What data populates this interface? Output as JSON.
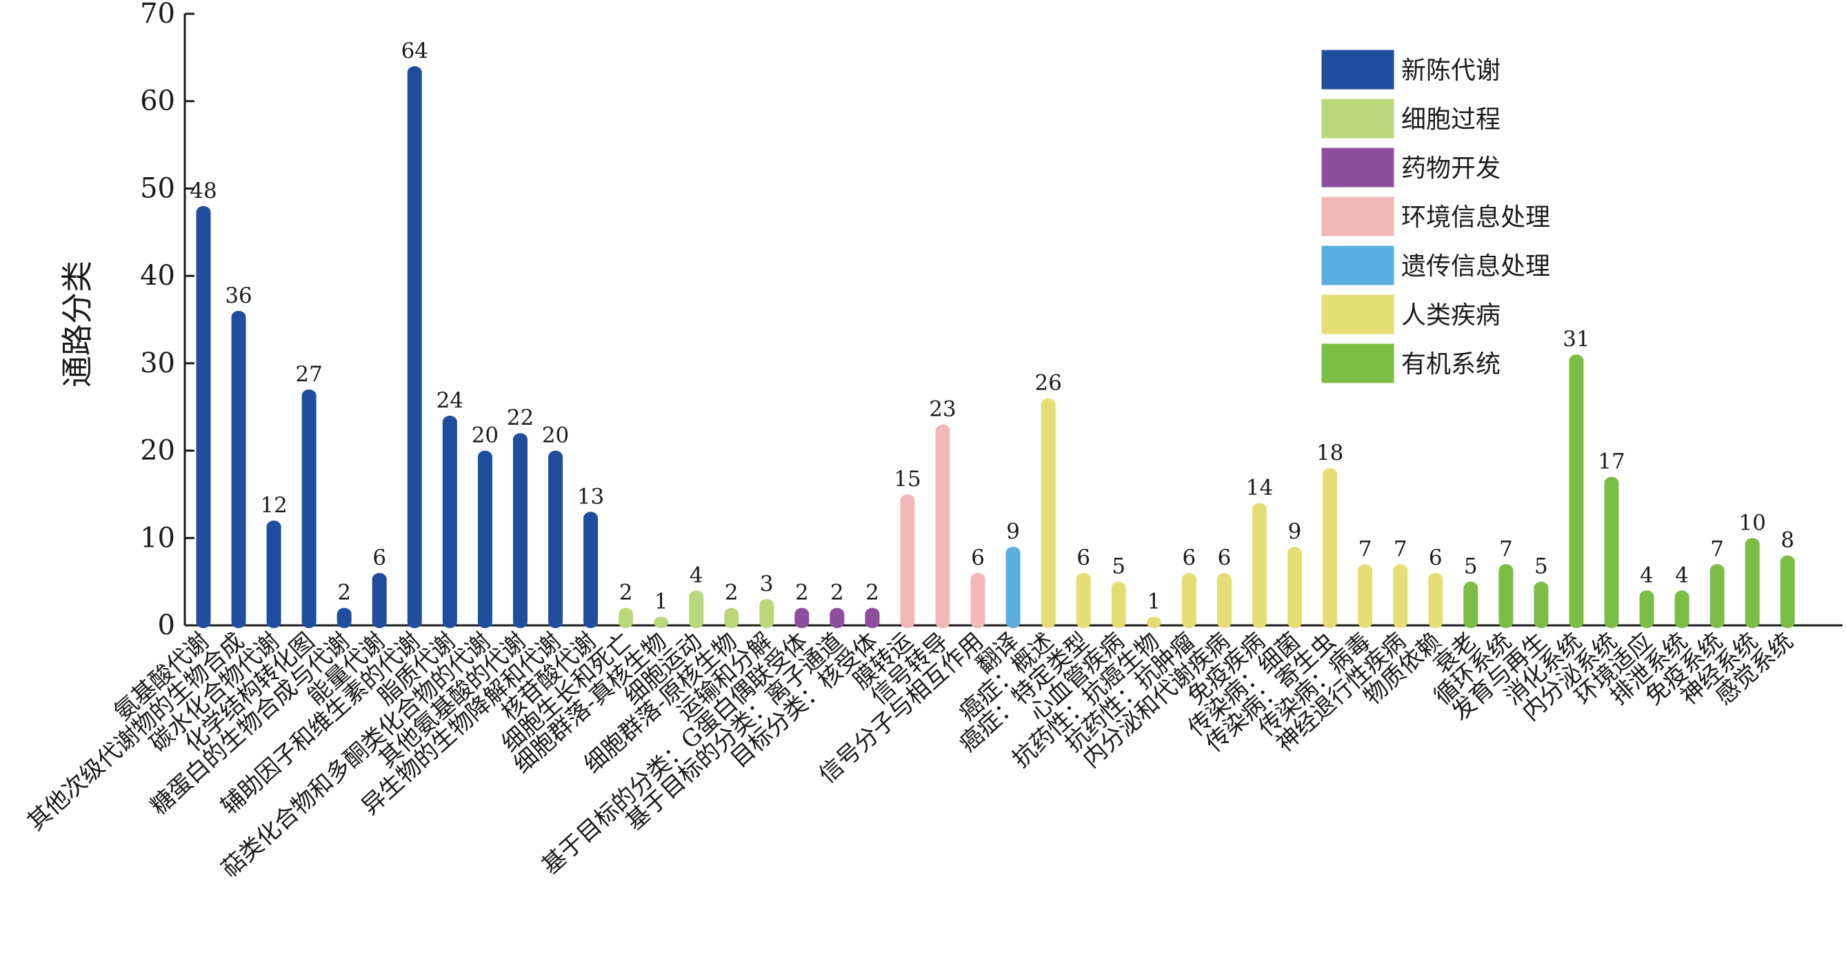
{
  "chart_data": {
    "type": "bar",
    "ylabel": "通路分类",
    "ylim": [
      0,
      70
    ],
    "yticks": [
      0,
      10,
      20,
      30,
      40,
      50,
      60,
      70
    ],
    "legend_position": "top-right",
    "groups": [
      {
        "name": "新陈代谢",
        "color": "#1f4e9f"
      },
      {
        "name": "细胞过程",
        "color": "#b8d87a"
      },
      {
        "name": "药物开发",
        "color": "#8e4e9e"
      },
      {
        "name": "环境信息处理",
        "color": "#f2b8b8"
      },
      {
        "name": "遗传信息处理",
        "color": "#5aaee0"
      },
      {
        "name": "人类疾病",
        "color": "#e5de74"
      },
      {
        "name": "有机系统",
        "color": "#7cbd45"
      }
    ],
    "bars": [
      {
        "category": "氨基酸代谢",
        "value": 48,
        "group": 0
      },
      {
        "category": "其他次级代谢物的生物合成",
        "value": 36,
        "group": 0
      },
      {
        "category": "碳水化合物代谢",
        "value": 12,
        "group": 0
      },
      {
        "category": "化学结构转化图",
        "value": 27,
        "group": 0
      },
      {
        "category": "糖蛋白的生物合成与代谢",
        "value": 2,
        "group": 0
      },
      {
        "category": "能量代谢",
        "value": 6,
        "group": 0
      },
      {
        "category": "辅助因子和维生素的代谢",
        "value": 64,
        "group": 0
      },
      {
        "category": "脂质代谢",
        "value": 24,
        "group": 0
      },
      {
        "category": "萜类化合物和多酮类化合物的代谢",
        "value": 20,
        "group": 0
      },
      {
        "category": "其他氨基酸的代谢",
        "value": 22,
        "group": 0
      },
      {
        "category": "异生物的生物降解和代谢",
        "value": 20,
        "group": 0
      },
      {
        "category": "核苷酸代谢",
        "value": 13,
        "group": 0
      },
      {
        "category": "细胞生长和死亡",
        "value": 2,
        "group": 1
      },
      {
        "category": "细胞群落-真核生物",
        "value": 1,
        "group": 1
      },
      {
        "category": "细胞运动",
        "value": 4,
        "group": 1
      },
      {
        "category": "细胞群落-原核生物",
        "value": 2,
        "group": 1
      },
      {
        "category": "运输和分解",
        "value": 3,
        "group": 1
      },
      {
        "category": "基于目标的分类：G蛋白偶联受体",
        "value": 2,
        "group": 2
      },
      {
        "category": "基于目标的分类：离子通道",
        "value": 2,
        "group": 2
      },
      {
        "category": "目标分类：核受体",
        "value": 2,
        "group": 2
      },
      {
        "category": "膜转运",
        "value": 15,
        "group": 3
      },
      {
        "category": "信号转导",
        "value": 23,
        "group": 3
      },
      {
        "category": "信号分子与相互作用",
        "value": 6,
        "group": 3
      },
      {
        "category": "翻译",
        "value": 9,
        "group": 4
      },
      {
        "category": "癌症：概述",
        "value": 26,
        "group": 5
      },
      {
        "category": "癌症：特定类型",
        "value": 6,
        "group": 5
      },
      {
        "category": "心血管疾病",
        "value": 5,
        "group": 5
      },
      {
        "category": "抗药性：抗癌生物",
        "value": 1,
        "group": 5
      },
      {
        "category": "抗药性：抗肿瘤",
        "value": 6,
        "group": 5
      },
      {
        "category": "内分泌和代谢疾病",
        "value": 6,
        "group": 5
      },
      {
        "category": "免疫疾病",
        "value": 14,
        "group": 5
      },
      {
        "category": "传染病：细菌",
        "value": 9,
        "group": 5
      },
      {
        "category": "传染病：寄生虫",
        "value": 18,
        "group": 5
      },
      {
        "category": "传染病：病毒",
        "value": 7,
        "group": 5
      },
      {
        "category": "神经退行性疾病",
        "value": 7,
        "group": 5
      },
      {
        "category": "物质依赖",
        "value": 6,
        "group": 5
      },
      {
        "category": "衰老",
        "value": 5,
        "group": 6
      },
      {
        "category": "循环系统",
        "value": 7,
        "group": 6
      },
      {
        "category": "发育与再生",
        "value": 5,
        "group": 6
      },
      {
        "category": "消化系统",
        "value": 31,
        "group": 6
      },
      {
        "category": "内分泌系统",
        "value": 17,
        "group": 6
      },
      {
        "category": "环境适应",
        "value": 4,
        "group": 6
      },
      {
        "category": "排泄系统",
        "value": 4,
        "group": 6
      },
      {
        "category": "免疫系统",
        "value": 7,
        "group": 6
      },
      {
        "category": "神经系统",
        "value": 10,
        "group": 6
      },
      {
        "category": "感觉系统",
        "value": 8,
        "group": 6
      }
    ]
  }
}
